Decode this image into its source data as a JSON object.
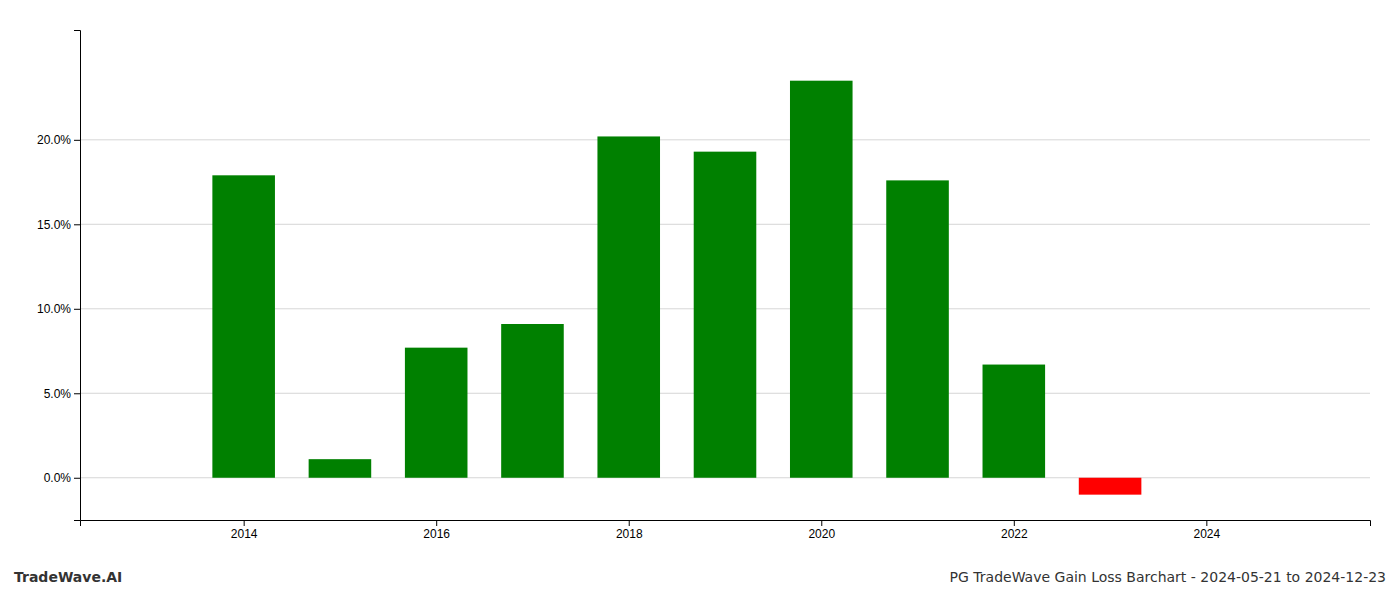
{
  "chart_data": {
    "type": "bar",
    "x": [
      2014,
      2015,
      2016,
      2017,
      2018,
      2019,
      2020,
      2021,
      2022,
      2023
    ],
    "values": [
      0.179,
      0.011,
      0.077,
      0.091,
      0.202,
      0.193,
      0.235,
      0.176,
      0.067,
      -0.01
    ],
    "colors": [
      "#008000",
      "#008000",
      "#008000",
      "#008000",
      "#008000",
      "#008000",
      "#008000",
      "#008000",
      "#008000",
      "#ff0000"
    ],
    "xlim": [
      2012.3,
      2025.7
    ],
    "xticks": [
      2014,
      2016,
      2018,
      2020,
      2022,
      2024
    ],
    "ylim": [
      -0.025,
      0.265
    ],
    "yticks": [
      {
        "value": 0.0,
        "label": "0.0%"
      },
      {
        "value": 0.05,
        "label": "5.0%"
      },
      {
        "value": 0.1,
        "label": "10.0%"
      },
      {
        "value": 0.15,
        "label": "15.0%"
      },
      {
        "value": 0.2,
        "label": "20.0%"
      }
    ],
    "grid": true,
    "annotations": [
      "TradeWave.AI",
      "PG TradeWave Gain Loss Barchart - 2024-05-21 to 2024-12-23"
    ]
  }
}
